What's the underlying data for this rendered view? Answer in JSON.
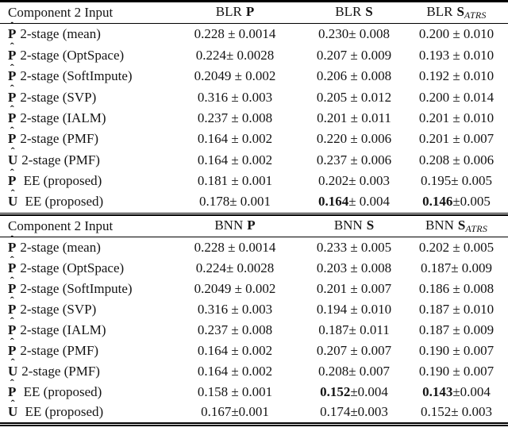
{
  "page": {
    "background": "#ffffff",
    "text_color": "#141414",
    "rule_color": "#000000"
  },
  "tables": [
    {
      "corner_label": "Component 2 Input",
      "columns": [
        {
          "prefix": "BLR",
          "symbol": "P",
          "subscript": ""
        },
        {
          "prefix": "BLR",
          "symbol": "S",
          "subscript": ""
        },
        {
          "prefix": "BLR",
          "symbol": "S",
          "subscript": "ATRS"
        }
      ],
      "rows": [
        {
          "symbol": "P",
          "hat": "ˆ",
          "method": "2-stage (mean)",
          "cells": [
            [
              [
                "0.228 ± 0.0014",
                false
              ]
            ],
            [
              [
                "0.230± 0.008",
                false
              ]
            ],
            [
              [
                "0.200 ± 0.010",
                false
              ]
            ]
          ]
        },
        {
          "symbol": "P",
          "hat": "ˆ",
          "method": "2-stage (OptSpace)",
          "cells": [
            [
              [
                "0.224± 0.0028",
                false
              ]
            ],
            [
              [
                "0.207 ± 0.009",
                false
              ]
            ],
            [
              [
                "0.193 ± 0.010",
                false
              ]
            ]
          ]
        },
        {
          "symbol": "P",
          "hat": "ˆ",
          "method": "2-stage (SoftImpute)",
          "cells": [
            [
              [
                "0.2049 ± 0.002",
                false
              ]
            ],
            [
              [
                "0.206 ± 0.008",
                false
              ]
            ],
            [
              [
                "0.192 ± 0.010",
                false
              ]
            ]
          ]
        },
        {
          "symbol": "P",
          "hat": "ˆ",
          "method": "2-stage (SVP)",
          "cells": [
            [
              [
                "0.316 ± 0.003",
                false
              ]
            ],
            [
              [
                "0.205 ± 0.012",
                false
              ]
            ],
            [
              [
                "0.200 ± 0.014",
                false
              ]
            ]
          ]
        },
        {
          "symbol": "P",
          "hat": "ˆ",
          "method": "2-stage (IALM)",
          "cells": [
            [
              [
                "0.237 ± 0.008",
                false
              ]
            ],
            [
              [
                "0.201 ± 0.011",
                false
              ]
            ],
            [
              [
                "0.201 ± 0.010",
                false
              ]
            ]
          ]
        },
        {
          "symbol": "P",
          "hat": "ˆ",
          "method": "2-stage (PMF)",
          "cells": [
            [
              [
                "0.164 ± 0.002",
                false
              ]
            ],
            [
              [
                "0.220 ± 0.006",
                false
              ]
            ],
            [
              [
                "0.201 ± 0.007",
                false
              ]
            ]
          ]
        },
        {
          "symbol": "U",
          "hat": "ˆ",
          "method": "2-stage (PMF)",
          "cells": [
            [
              [
                "0.164 ± 0.002",
                false
              ]
            ],
            [
              [
                "0.237 ± 0.006",
                false
              ]
            ],
            [
              [
                "0.208 ± 0.006",
                false
              ]
            ]
          ]
        },
        {
          "symbol": "P",
          "hat": "ˆ",
          "method": " EE (proposed)",
          "cells": [
            [
              [
                "0.181 ± 0.001",
                false
              ]
            ],
            [
              [
                "0.202± 0.003",
                false
              ]
            ],
            [
              [
                "0.195± 0.005",
                false
              ]
            ]
          ]
        },
        {
          "symbol": "U",
          "hat": "ˆ",
          "method": " EE (proposed)",
          "cells": [
            [
              [
                "0.178± 0.001",
                false
              ]
            ],
            [
              [
                "0.164",
                true
              ],
              [
                "± 0.004",
                false
              ]
            ],
            [
              [
                "0.146",
                true
              ],
              [
                "±0.005",
                false
              ]
            ]
          ]
        }
      ]
    },
    {
      "corner_label": "Component 2 Input",
      "columns": [
        {
          "prefix": "BNN",
          "symbol": "P",
          "subscript": ""
        },
        {
          "prefix": "BNN",
          "symbol": "S",
          "subscript": ""
        },
        {
          "prefix": "BNN",
          "symbol": "S",
          "subscript": "ATRS"
        }
      ],
      "rows": [
        {
          "symbol": "P",
          "hat": "ˆ",
          "method": "2-stage (mean)",
          "cells": [
            [
              [
                "0.228 ± 0.0014",
                false
              ]
            ],
            [
              [
                "0.233 ± 0.005",
                false
              ]
            ],
            [
              [
                "0.202 ± 0.005",
                false
              ]
            ]
          ]
        },
        {
          "symbol": "P",
          "hat": "ˆ",
          "method": "2-stage (OptSpace)",
          "cells": [
            [
              [
                "0.224± 0.0028",
                false
              ]
            ],
            [
              [
                "0.203 ± 0.008",
                false
              ]
            ],
            [
              [
                "0.187± 0.009",
                false
              ]
            ]
          ]
        },
        {
          "symbol": "P",
          "hat": "ˆ",
          "method": "2-stage (SoftImpute)",
          "cells": [
            [
              [
                "0.2049 ± 0.002",
                false
              ]
            ],
            [
              [
                "0.201 ± 0.007",
                false
              ]
            ],
            [
              [
                "0.186 ± 0.008",
                false
              ]
            ]
          ]
        },
        {
          "symbol": "P",
          "hat": "ˆ",
          "method": "2-stage (SVP)",
          "cells": [
            [
              [
                "0.316 ± 0.003",
                false
              ]
            ],
            [
              [
                "0.194 ± 0.010",
                false
              ]
            ],
            [
              [
                "0.187 ± 0.010",
                false
              ]
            ]
          ]
        },
        {
          "symbol": "P",
          "hat": "ˆ",
          "method": "2-stage (IALM)",
          "cells": [
            [
              [
                "0.237 ± 0.008",
                false
              ]
            ],
            [
              [
                "0.187± 0.011",
                false
              ]
            ],
            [
              [
                "0.187 ± 0.009",
                false
              ]
            ]
          ]
        },
        {
          "symbol": "P",
          "hat": "ˆ",
          "method": "2-stage (PMF)",
          "cells": [
            [
              [
                "0.164 ± 0.002",
                false
              ]
            ],
            [
              [
                "0.207 ± 0.007",
                false
              ]
            ],
            [
              [
                "0.190 ± 0.007",
                false
              ]
            ]
          ]
        },
        {
          "symbol": "U",
          "hat": "ˆ",
          "method": "2-stage (PMF)",
          "cells": [
            [
              [
                "0.164 ± 0.002",
                false
              ]
            ],
            [
              [
                "0.208± 0.007",
                false
              ]
            ],
            [
              [
                "0.190 ± 0.007",
                false
              ]
            ]
          ]
        },
        {
          "symbol": "P",
          "hat": "ˆ",
          "method": " EE (proposed)",
          "cells": [
            [
              [
                "0.158 ± 0.001",
                false
              ]
            ],
            [
              [
                "0.152",
                true
              ],
              [
                "±0.004",
                false
              ]
            ],
            [
              [
                "0.143",
                true
              ],
              [
                "±0.004",
                false
              ]
            ]
          ]
        },
        {
          "symbol": "U",
          "hat": "ˆ",
          "method": " EE (proposed)",
          "cells": [
            [
              [
                "0.167±0.001",
                false
              ]
            ],
            [
              [
                "0.174±0.003",
                false
              ]
            ],
            [
              [
                "0.152± 0.003",
                false
              ]
            ]
          ]
        }
      ]
    }
  ]
}
